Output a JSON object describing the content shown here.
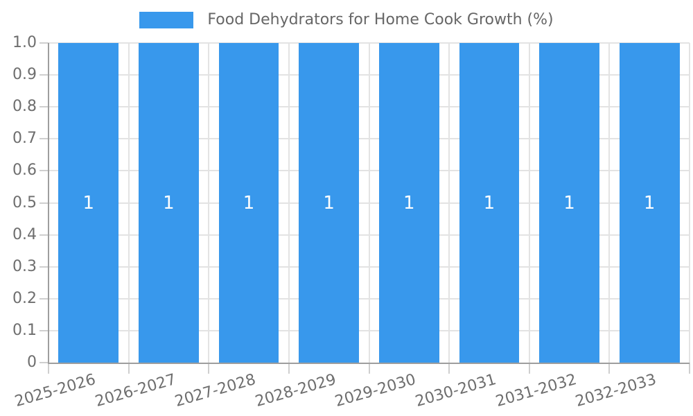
{
  "legend": {
    "label": "Food Dehydrators for Home Cook Growth (%)",
    "swatch_color": "#3898EC"
  },
  "chart_data": {
    "type": "bar",
    "title": "Food Dehydrators for Home Cook Growth (%)",
    "categories": [
      "2025-2026",
      "2026-2027",
      "2027-2028",
      "2028-2029",
      "2029-2030",
      "2030-2031",
      "2031-2032",
      "2032-2033"
    ],
    "series": [
      {
        "name": "Food Dehydrators for Home Cook Growth (%)",
        "values": [
          1,
          1,
          1,
          1,
          1,
          1,
          1,
          1
        ]
      }
    ],
    "value_labels": [
      "1",
      "1",
      "1",
      "1",
      "1",
      "1",
      "1",
      "1"
    ],
    "y_tick_labels": [
      "1.0",
      "0.9",
      "0.8",
      "0.7",
      "0.6",
      "0.5",
      "0.4",
      "0.3",
      "0.2",
      "0.1",
      "0"
    ],
    "ylim": [
      0,
      1
    ],
    "xlabel": "",
    "ylabel": "",
    "grid": true,
    "legend_position": "top",
    "x_label_rotation_deg": -16,
    "bar_color": "#3898EC",
    "value_label_color": "#FFFFFF",
    "axis_label_color": "#6E6E6E",
    "grid_color": "#E3E3E3",
    "tick_color": "#CFCFCF",
    "axis_line_color": "#9E9E9E",
    "title_color": "#666666",
    "background_color": "#FFFFFF"
  }
}
